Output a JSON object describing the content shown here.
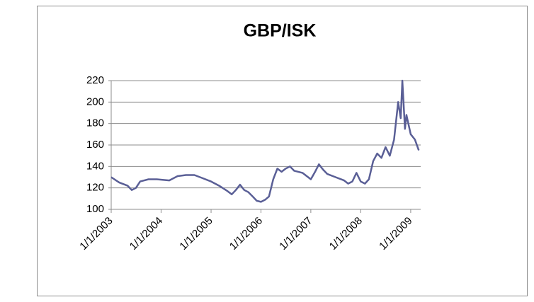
{
  "chart_data": {
    "type": "line",
    "title": "GBP/ISK",
    "x": [
      "1/1/2003",
      "3/1/2003",
      "5/1/2003",
      "6/1/2003",
      "7/1/2003",
      "8/1/2003",
      "10/1/2003",
      "12/1/2003",
      "3/1/2004",
      "5/1/2004",
      "7/1/2004",
      "9/1/2004",
      "11/1/2004",
      "1/1/2005",
      "3/1/2005",
      "5/1/2005",
      "6/1/2005",
      "7/1/2005",
      "8/1/2005",
      "9/1/2005",
      "10/1/2005",
      "11/1/2005",
      "12/1/2005",
      "1/1/2006",
      "2/1/2006",
      "3/1/2006",
      "4/1/2006",
      "5/1/2006",
      "6/1/2006",
      "7/1/2006",
      "8/1/2006",
      "9/1/2006",
      "11/1/2006",
      "1/1/2007",
      "2/1/2007",
      "3/1/2007",
      "4/1/2007",
      "5/1/2007",
      "7/1/2007",
      "9/1/2007",
      "10/1/2007",
      "11/1/2007",
      "12/1/2007",
      "1/1/2008",
      "2/1/2008",
      "3/1/2008",
      "4/1/2008",
      "5/1/2008",
      "6/1/2008",
      "7/1/2008",
      "8/1/2008",
      "9/1/2008",
      "10/1/2008",
      "10/20/2008",
      "11/1/2008",
      "11/20/2008",
      "12/1/2008",
      "1/1/2009",
      "2/1/2009",
      "3/1/2009"
    ],
    "series": [
      {
        "name": "GBP/ISK",
        "color": "#5a5f96",
        "values": [
          130,
          125,
          122,
          118,
          120,
          126,
          128,
          128,
          127,
          131,
          132,
          132,
          129,
          126,
          122,
          117,
          114,
          118,
          123,
          118,
          116,
          112,
          108,
          107,
          109,
          112,
          128,
          138,
          135,
          138,
          140,
          136,
          134,
          128,
          135,
          142,
          137,
          133,
          130,
          127,
          124,
          126,
          134,
          126,
          124,
          128,
          145,
          152,
          148,
          158,
          150,
          165,
          200,
          185,
          220,
          175,
          188,
          170,
          165,
          155
        ]
      }
    ],
    "xlim": [
      "1/1/2003",
      "3/15/2009"
    ],
    "xticks": [
      "1/1/2003",
      "1/1/2004",
      "1/1/2005",
      "1/1/2006",
      "1/1/2007",
      "1/1/2008",
      "1/1/2009"
    ],
    "ylim": [
      100,
      220
    ],
    "yticks": [
      100,
      120,
      140,
      160,
      180,
      200,
      220
    ],
    "grid": true
  }
}
